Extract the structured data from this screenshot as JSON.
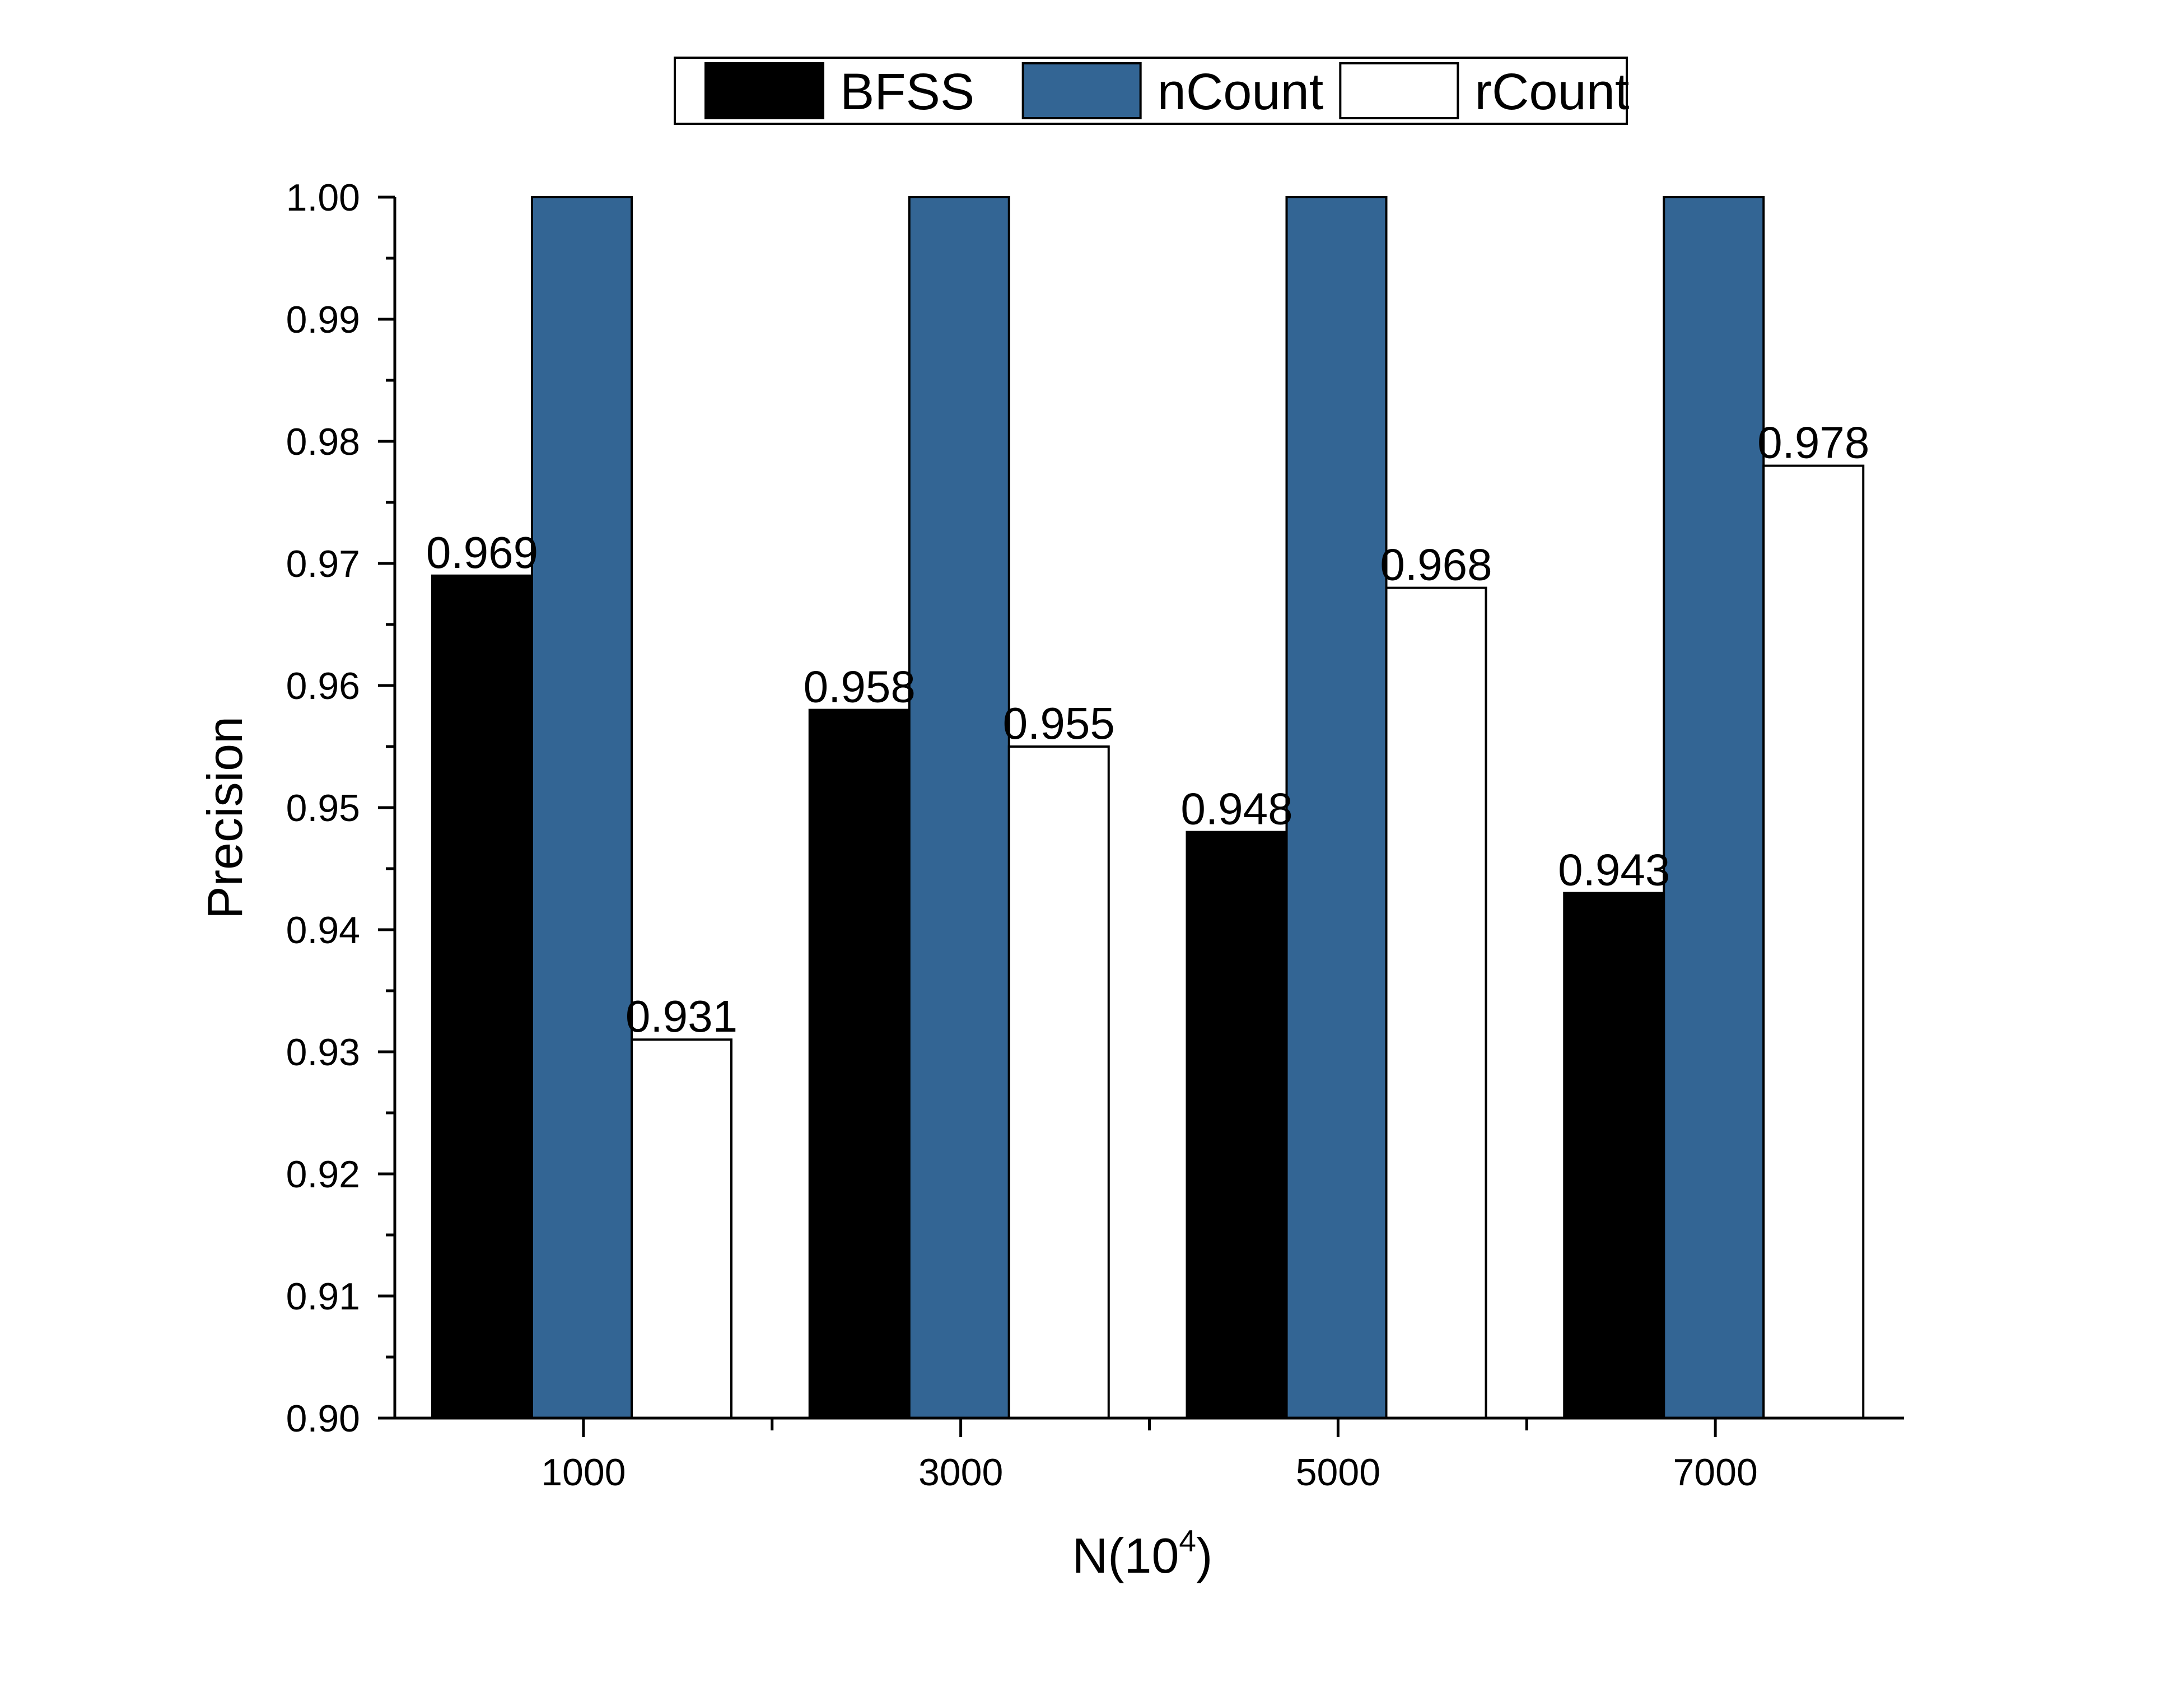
{
  "chart_data": {
    "type": "bar",
    "categories": [
      "1000",
      "3000",
      "5000",
      "7000"
    ],
    "series": [
      {
        "name": "BFSS",
        "values": [
          0.969,
          0.958,
          0.948,
          0.943
        ],
        "color": "#000000",
        "labels": [
          "0.969",
          "0.958",
          "0.948",
          "0.943"
        ]
      },
      {
        "name": "nCount",
        "values": [
          1.0,
          1.0,
          1.0,
          1.0
        ],
        "color": "#336594",
        "labels": []
      },
      {
        "name": "rCount",
        "values": [
          0.931,
          0.955,
          0.968,
          0.978
        ],
        "color": "#ffffff",
        "labels": [
          "0.931",
          "0.955",
          "0.968",
          "0.978"
        ]
      }
    ],
    "xlabel": "N(10",
    "xlabel_superscript": "4",
    "xlabel_suffix": ")",
    "ylabel": "Precision",
    "ylim": [
      0.9,
      1.0
    ],
    "yticks": [
      "0.90",
      "0.91",
      "0.92",
      "0.93",
      "0.94",
      "0.95",
      "0.96",
      "0.97",
      "0.98",
      "0.99",
      "1.00"
    ],
    "legend_position": "top-center",
    "grid": false
  }
}
